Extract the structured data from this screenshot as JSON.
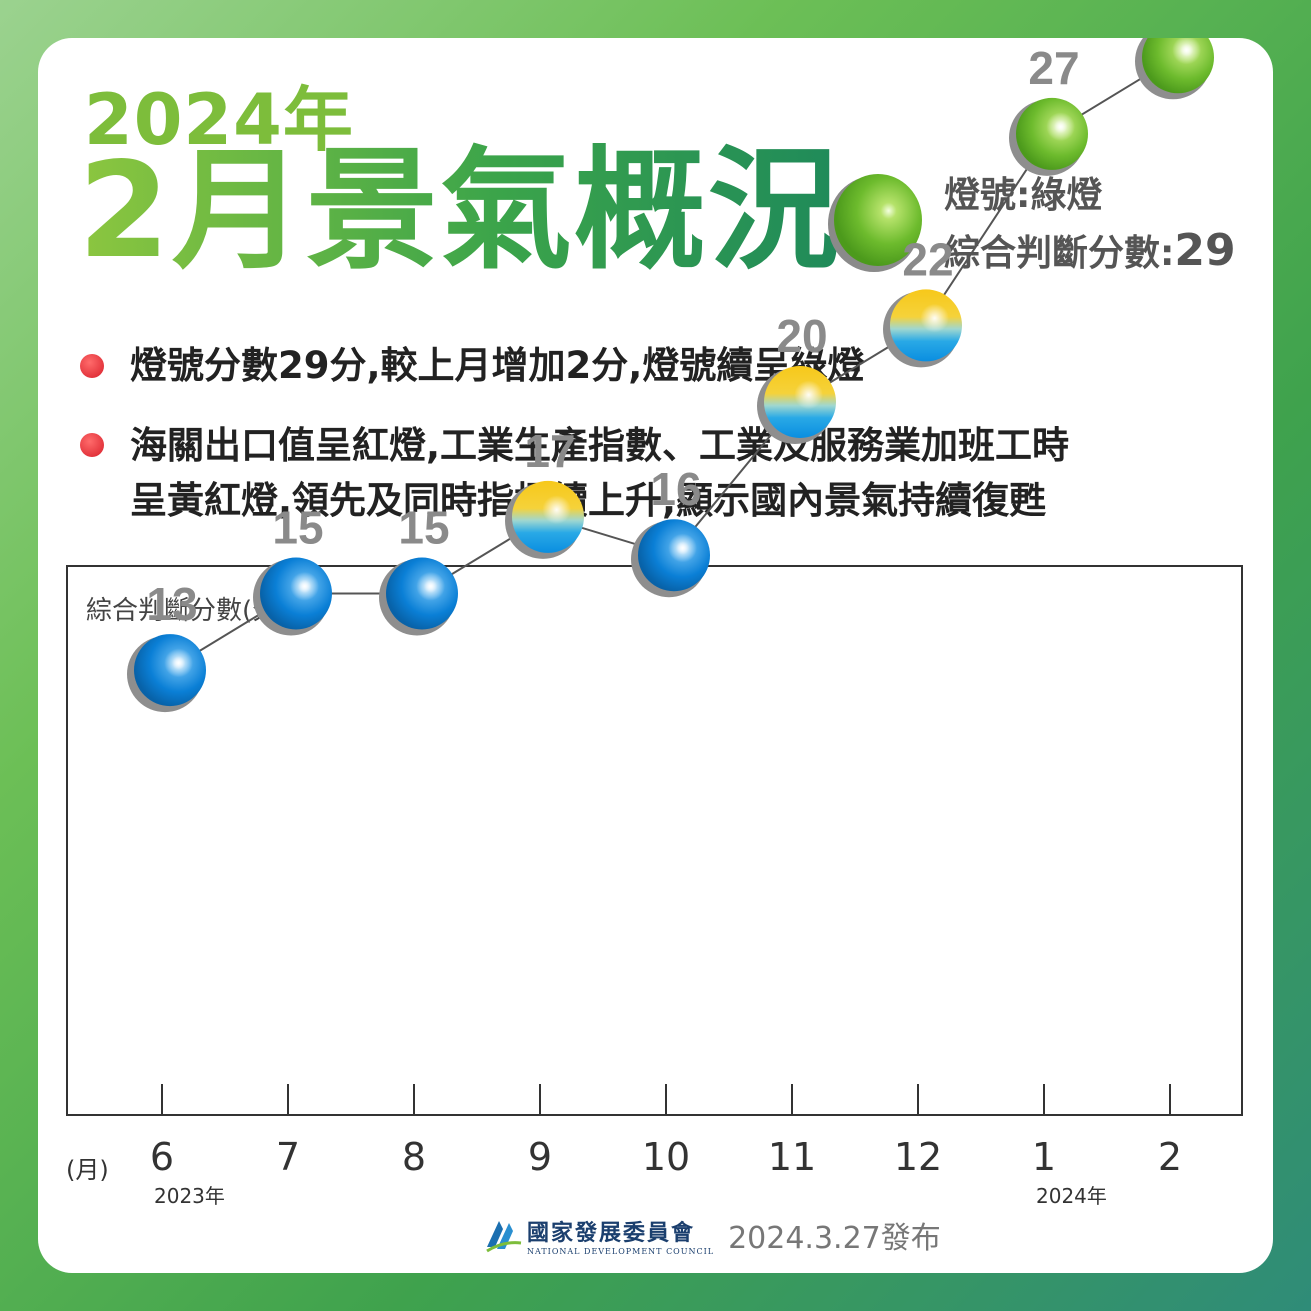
{
  "header": {
    "year_title": "2024年",
    "main_title": "2月景氣概況",
    "lamp_prefix": "燈號:",
    "lamp_value": "綠燈",
    "score_prefix": "綜合判斷分數:",
    "score_value": "29"
  },
  "bullets": [
    {
      "lines": [
        "燈號分數29分,較上月增加2分,燈號續呈綠燈"
      ]
    },
    {
      "lines": [
        "海關出口值呈紅燈,工業生產指數、工業及服務業加班工時",
        "呈黃紅燈,領先及同時指標續上升,顯示國內景氣持續復甦"
      ]
    }
  ],
  "chart_data": {
    "type": "line",
    "title": "",
    "ylabel": "綜合判斷分數(分)",
    "xlabel": "(月)",
    "ylim": [
      10,
      32
    ],
    "grid": false,
    "categories": [
      "6",
      "7",
      "8",
      "9",
      "10",
      "11",
      "12",
      "1",
      "2"
    ],
    "year_labels": [
      {
        "index": 0,
        "label": "2023年"
      },
      {
        "index": 7,
        "label": "2024年"
      }
    ],
    "series": [
      {
        "values": [
          13,
          15,
          15,
          17,
          16,
          20,
          22,
          27,
          29
        ],
        "signals": [
          "blue",
          "blue",
          "blue",
          "yellow-blue",
          "blue",
          "yellow-blue",
          "yellow-blue",
          "green",
          "green"
        ]
      }
    ],
    "highlight_last": true
  },
  "colors": {
    "blue": "#0a7fd6",
    "green": "#6dbb2d",
    "yellow": "#f5c518",
    "label_gray": "#8a8a8a",
    "bullet_red": "#e02a33"
  },
  "footer": {
    "org_name": "國家發展委員會",
    "org_name_en": "NATIONAL DEVELOPMENT COUNCIL",
    "publish_date": "2024.3.27發布"
  }
}
